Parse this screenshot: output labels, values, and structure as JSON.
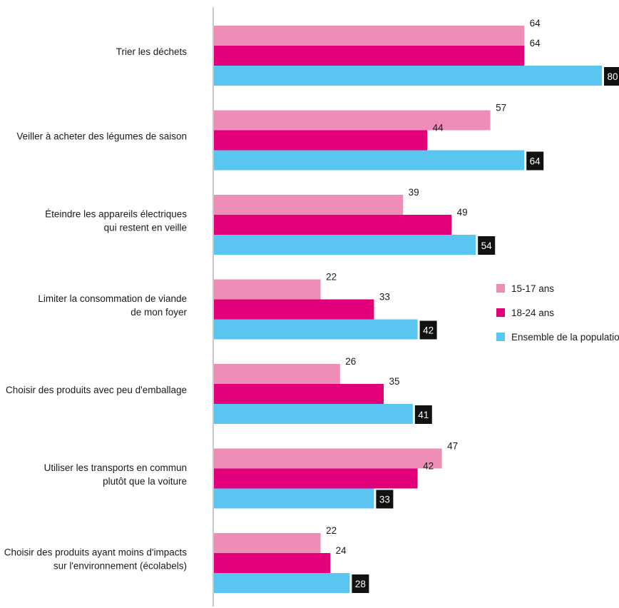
{
  "chart_data": {
    "type": "bar",
    "orientation": "horizontal",
    "categories": [
      [
        "Trier les déchets"
      ],
      [
        "Veiller à acheter des légumes de saison"
      ],
      [
        "Éteindre les appareils électriques",
        "qui restent en veille"
      ],
      [
        "Limiter la consommation de viande",
        "de mon foyer"
      ],
      [
        "Choisir des produits avec peu d'emballage"
      ],
      [
        "Utiliser les transports en commun",
        "plutôt que la voiture"
      ],
      [
        "Choisir des produits ayant moins d'impacts",
        "sur l'environnement (écolabels)"
      ]
    ],
    "series": [
      {
        "name": "15-17 ans",
        "color": "#ee8db5",
        "values": [
          64,
          57,
          39,
          22,
          26,
          47,
          22
        ]
      },
      {
        "name": "18-24 ans",
        "color": "#e2007a",
        "values": [
          64,
          44,
          49,
          33,
          35,
          42,
          24
        ]
      },
      {
        "name": "Ensemble de la population",
        "color": "#5bc5f2",
        "values": [
          80,
          64,
          54,
          42,
          41,
          33,
          28
        ],
        "label_style": "inverted"
      }
    ],
    "xlim": [
      0,
      100
    ],
    "legend_position": "right",
    "grid": false
  }
}
